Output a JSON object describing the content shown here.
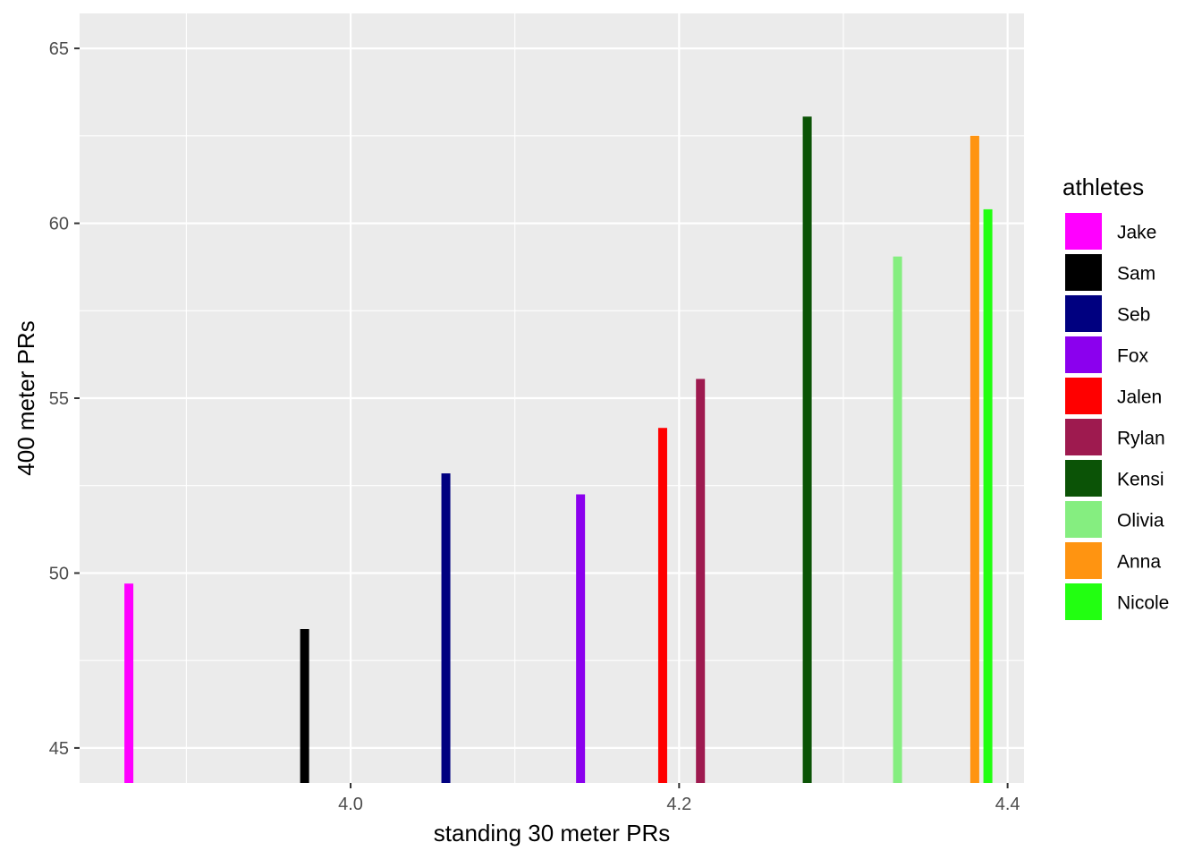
{
  "chart_data": {
    "type": "bar",
    "xlabel": "standing 30 meter PRs",
    "ylabel": "400 meter PRs",
    "xlim": [
      3.835,
      4.41
    ],
    "ylim": [
      44.0,
      66.0
    ],
    "x_ticks": [
      4.0,
      4.2,
      4.4
    ],
    "x_tick_labels": [
      "4.0",
      "4.2",
      "4.4"
    ],
    "y_ticks": [
      45,
      50,
      55,
      60,
      65
    ],
    "y_tick_labels": [
      "45",
      "50",
      "55",
      "60",
      "65"
    ],
    "grid": true,
    "legend": {
      "title": "athletes",
      "position": "right"
    },
    "series": [
      {
        "name": "Jake",
        "x": 3.865,
        "y": 49.7,
        "color": "#FF00FF"
      },
      {
        "name": "Sam",
        "x": 3.972,
        "y": 48.4,
        "color": "#000000"
      },
      {
        "name": "Seb",
        "x": 4.058,
        "y": 52.85,
        "color": "#000080"
      },
      {
        "name": "Fox",
        "x": 4.14,
        "y": 52.25,
        "color": "#8B00EE"
      },
      {
        "name": "Jalen",
        "x": 4.19,
        "y": 54.15,
        "color": "#FF0000"
      },
      {
        "name": "Rylan",
        "x": 4.213,
        "y": 55.55,
        "color": "#9E1A4F"
      },
      {
        "name": "Kensi",
        "x": 4.278,
        "y": 63.05,
        "color": "#0B5306"
      },
      {
        "name": "Olivia",
        "x": 4.333,
        "y": 59.05,
        "color": "#85EE80"
      },
      {
        "name": "Anna",
        "x": 4.38,
        "y": 62.5,
        "color": "#FF9411"
      },
      {
        "name": "Nicole",
        "x": 4.388,
        "y": 60.4,
        "color": "#22FF11"
      }
    ]
  }
}
